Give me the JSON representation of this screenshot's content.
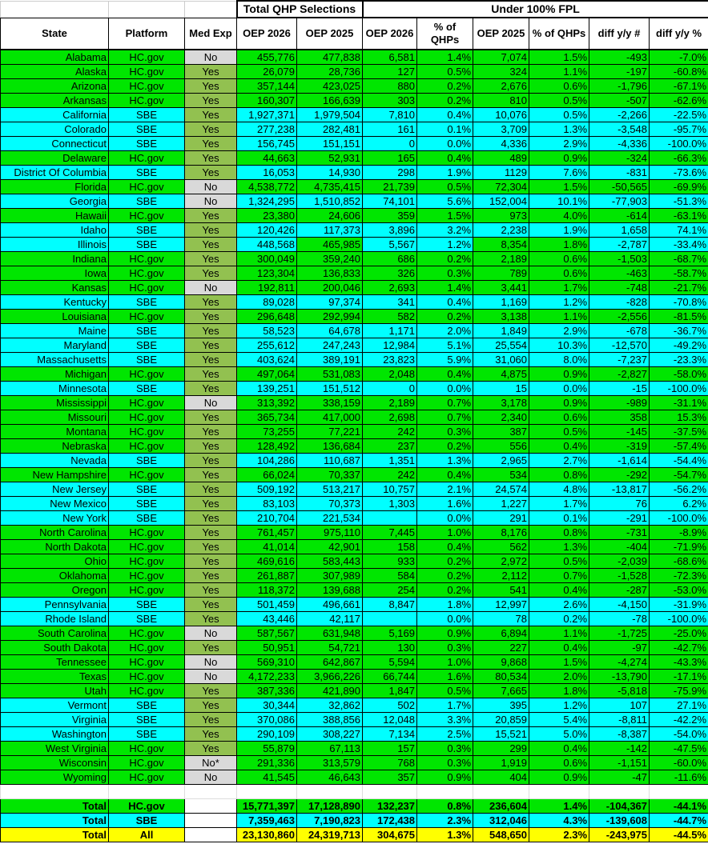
{
  "header": {
    "group_total": "Total QHP Selections",
    "group_fpl": "Under 100% FPL",
    "columns": [
      "State",
      "Platform",
      "Med Exp",
      "OEP 2026",
      "OEP 2025",
      "OEP 2026",
      "% of QHPs",
      "OEP 2025",
      "% of QHPs",
      "diff y/y #",
      "diff y/y %"
    ]
  },
  "colors": {
    "hcgov": "#00e600",
    "sbe": "#00ffff",
    "total_all": "#ffff00",
    "med_exp_yes": "#92c150",
    "med_exp_no": "#d9d9d9"
  },
  "rows": [
    [
      "Alabama",
      "HC.gov",
      "No",
      "455,776",
      "477,838",
      "6,581",
      "1.4%",
      "7,074",
      "1.5%",
      "-493",
      "-7.0%"
    ],
    [
      "Alaska",
      "HC.gov",
      "Yes",
      "26,079",
      "28,736",
      "127",
      "0.5%",
      "324",
      "1.1%",
      "-197",
      "-60.8%"
    ],
    [
      "Arizona",
      "HC.gov",
      "Yes",
      "357,144",
      "423,025",
      "880",
      "0.2%",
      "2,676",
      "0.6%",
      "-1,796",
      "-67.1%"
    ],
    [
      "Arkansas",
      "HC.gov",
      "Yes",
      "160,307",
      "166,639",
      "303",
      "0.2%",
      "810",
      "0.5%",
      "-507",
      "-62.6%"
    ],
    [
      "California",
      "SBE",
      "Yes",
      "1,927,371",
      "1,979,504",
      "7,810",
      "0.4%",
      "10,076",
      "0.5%",
      "-2,266",
      "-22.5%"
    ],
    [
      "Colorado",
      "SBE",
      "Yes",
      "277,238",
      "282,481",
      "161",
      "0.1%",
      "3,709",
      "1.3%",
      "-3,548",
      "-95.7%"
    ],
    [
      "Connecticut",
      "SBE",
      "Yes",
      "156,745",
      "151,151",
      "0",
      "0.0%",
      "4,336",
      "2.9%",
      "-4,336",
      "-100.0%"
    ],
    [
      "Delaware",
      "HC.gov",
      "Yes",
      "44,663",
      "52,931",
      "165",
      "0.4%",
      "489",
      "0.9%",
      "-324",
      "-66.3%"
    ],
    [
      "District Of Columbia",
      "SBE",
      "Yes",
      "16,053",
      "14,930",
      "298",
      "1.9%",
      "1129",
      "7.6%",
      "-831",
      "-73.6%"
    ],
    [
      "Florida",
      "HC.gov",
      "No",
      "4,538,772",
      "4,735,415",
      "21,739",
      "0.5%",
      "72,304",
      "1.5%",
      "-50,565",
      "-69.9%"
    ],
    [
      "Georgia",
      "SBE",
      "No",
      "1,324,295",
      "1,510,852",
      "74,101",
      "5.6%",
      "152,004",
      "10.1%",
      "-77,903",
      "-51.3%"
    ],
    [
      "Hawaii",
      "HC.gov",
      "Yes",
      "23,380",
      "24,606",
      "359",
      "1.5%",
      "973",
      "4.0%",
      "-614",
      "-63.1%"
    ],
    [
      "Idaho",
      "SBE",
      "Yes",
      "120,426",
      "117,373",
      "3,896",
      "3.2%",
      "2,238",
      "1.9%",
      "1,658",
      "74.1%"
    ],
    [
      "Illinois",
      "SBE",
      "Yes",
      "448,568",
      "465,985",
      "5,567",
      "1.2%",
      "8,354",
      "1.8%",
      "-2,787",
      "-33.4%"
    ],
    [
      "Indiana",
      "HC.gov",
      "Yes",
      "300,049",
      "359,240",
      "686",
      "0.2%",
      "2,189",
      "0.6%",
      "-1,503",
      "-68.7%"
    ],
    [
      "Iowa",
      "HC.gov",
      "Yes",
      "123,304",
      "136,833",
      "326",
      "0.3%",
      "789",
      "0.6%",
      "-463",
      "-58.7%"
    ],
    [
      "Kansas",
      "HC.gov",
      "No",
      "192,811",
      "200,046",
      "2,693",
      "1.4%",
      "3,441",
      "1.7%",
      "-748",
      "-21.7%"
    ],
    [
      "Kentucky",
      "SBE",
      "Yes",
      "89,028",
      "97,374",
      "341",
      "0.4%",
      "1,169",
      "1.2%",
      "-828",
      "-70.8%"
    ],
    [
      "Louisiana",
      "HC.gov",
      "Yes",
      "296,648",
      "292,994",
      "582",
      "0.2%",
      "3,138",
      "1.1%",
      "-2,556",
      "-81.5%"
    ],
    [
      "Maine",
      "SBE",
      "Yes",
      "58,523",
      "64,678",
      "1,171",
      "2.0%",
      "1,849",
      "2.9%",
      "-678",
      "-36.7%"
    ],
    [
      "Maryland",
      "SBE",
      "Yes",
      "255,612",
      "247,243",
      "12,984",
      "5.1%",
      "25,554",
      "10.3%",
      "-12,570",
      "-49.2%"
    ],
    [
      "Massachusetts",
      "SBE",
      "Yes",
      "403,624",
      "389,191",
      "23,823",
      "5.9%",
      "31,060",
      "8.0%",
      "-7,237",
      "-23.3%"
    ],
    [
      "Michigan",
      "HC.gov",
      "Yes",
      "497,064",
      "531,083",
      "2,048",
      "0.4%",
      "4,875",
      "0.9%",
      "-2,827",
      "-58.0%"
    ],
    [
      "Minnesota",
      "SBE",
      "Yes",
      "139,251",
      "151,512",
      "0",
      "0.0%",
      "15",
      "0.0%",
      "-15",
      "-100.0%"
    ],
    [
      "Mississippi",
      "HC.gov",
      "No",
      "313,392",
      "338,159",
      "2,189",
      "0.7%",
      "3,178",
      "0.9%",
      "-989",
      "-31.1%"
    ],
    [
      "Missouri",
      "HC.gov",
      "Yes",
      "365,734",
      "417,000",
      "2,698",
      "0.7%",
      "2,340",
      "0.6%",
      "358",
      "15.3%"
    ],
    [
      "Montana",
      "HC.gov",
      "Yes",
      "73,255",
      "77,221",
      "242",
      "0.3%",
      "387",
      "0.5%",
      "-145",
      "-37.5%"
    ],
    [
      "Nebraska",
      "HC.gov",
      "Yes",
      "128,492",
      "136,684",
      "237",
      "0.2%",
      "556",
      "0.4%",
      "-319",
      "-57.4%"
    ],
    [
      "Nevada",
      "SBE",
      "Yes",
      "104,286",
      "110,687",
      "1,351",
      "1.3%",
      "2,965",
      "2.7%",
      "-1,614",
      "-54.4%"
    ],
    [
      "New Hampshire",
      "HC.gov",
      "Yes",
      "66,024",
      "70,337",
      "242",
      "0.4%",
      "534",
      "0.8%",
      "-292",
      "-54.7%"
    ],
    [
      "New Jersey",
      "SBE",
      "Yes",
      "509,192",
      "513,217",
      "10,757",
      "2.1%",
      "24,574",
      "4.8%",
      "-13,817",
      "-56.2%"
    ],
    [
      "New Mexico",
      "SBE",
      "Yes",
      "83,103",
      "70,373",
      "1,303",
      "1.6%",
      "1,227",
      "1.7%",
      "76",
      "6.2%"
    ],
    [
      "New York",
      "SBE",
      "Yes",
      "210,704",
      "221,534",
      "",
      "0.0%",
      "291",
      "0.1%",
      "-291",
      "-100.0%"
    ],
    [
      "North Carolina",
      "HC.gov",
      "Yes",
      "761,457",
      "975,110",
      "7,445",
      "1.0%",
      "8,176",
      "0.8%",
      "-731",
      "-8.9%"
    ],
    [
      "North Dakota",
      "HC.gov",
      "Yes",
      "41,014",
      "42,901",
      "158",
      "0.4%",
      "562",
      "1.3%",
      "-404",
      "-71.9%"
    ],
    [
      "Ohio",
      "HC.gov",
      "Yes",
      "469,616",
      "583,443",
      "933",
      "0.2%",
      "2,972",
      "0.5%",
      "-2,039",
      "-68.6%"
    ],
    [
      "Oklahoma",
      "HC.gov",
      "Yes",
      "261,887",
      "307,989",
      "584",
      "0.2%",
      "2,112",
      "0.7%",
      "-1,528",
      "-72.3%"
    ],
    [
      "Oregon",
      "HC.gov",
      "Yes",
      "118,372",
      "139,688",
      "254",
      "0.2%",
      "541",
      "0.4%",
      "-287",
      "-53.0%"
    ],
    [
      "Pennsylvania",
      "SBE",
      "Yes",
      "501,459",
      "496,661",
      "8,847",
      "1.8%",
      "12,997",
      "2.6%",
      "-4,150",
      "-31.9%"
    ],
    [
      "Rhode Island",
      "SBE",
      "Yes",
      "43,446",
      "42,117",
      "",
      "0.0%",
      "78",
      "0.2%",
      "-78",
      "-100.0%"
    ],
    [
      "South Carolina",
      "HC.gov",
      "No",
      "587,567",
      "631,948",
      "5,169",
      "0.9%",
      "6,894",
      "1.1%",
      "-1,725",
      "-25.0%"
    ],
    [
      "South Dakota",
      "HC.gov",
      "Yes",
      "50,951",
      "54,721",
      "130",
      "0.3%",
      "227",
      "0.4%",
      "-97",
      "-42.7%"
    ],
    [
      "Tennessee",
      "HC.gov",
      "No",
      "569,310",
      "642,867",
      "5,594",
      "1.0%",
      "9,868",
      "1.5%",
      "-4,274",
      "-43.3%"
    ],
    [
      "Texas",
      "HC.gov",
      "No",
      "4,172,233",
      "3,966,226",
      "66,744",
      "1.6%",
      "80,534",
      "2.0%",
      "-13,790",
      "-17.1%"
    ],
    [
      "Utah",
      "HC.gov",
      "Yes",
      "387,336",
      "421,890",
      "1,847",
      "0.5%",
      "7,665",
      "1.8%",
      "-5,818",
      "-75.9%"
    ],
    [
      "Vermont",
      "SBE",
      "Yes",
      "30,344",
      "32,862",
      "502",
      "1.7%",
      "395",
      "1.2%",
      "107",
      "27.1%"
    ],
    [
      "Virginia",
      "SBE",
      "Yes",
      "370,086",
      "388,856",
      "12,048",
      "3.3%",
      "20,859",
      "5.4%",
      "-8,811",
      "-42.2%"
    ],
    [
      "Washington",
      "SBE",
      "Yes",
      "290,109",
      "308,227",
      "7,134",
      "2.5%",
      "15,521",
      "5.0%",
      "-8,387",
      "-54.0%"
    ],
    [
      "West Virginia",
      "HC.gov",
      "Yes",
      "55,879",
      "67,113",
      "157",
      "0.3%",
      "299",
      "0.4%",
      "-142",
      "-47.5%"
    ],
    [
      "Wisconsin",
      "HC.gov",
      "No*",
      "291,336",
      "313,579",
      "768",
      "0.3%",
      "1,919",
      "0.6%",
      "-1,151",
      "-60.0%"
    ],
    [
      "Wyoming",
      "HC.gov",
      "No",
      "41,545",
      "46,643",
      "357",
      "0.9%",
      "404",
      "0.9%",
      "-47",
      "-11.6%"
    ]
  ],
  "totals": [
    [
      "Total",
      "HC.gov",
      "",
      "15,771,397",
      "17,128,890",
      "132,237",
      "0.8%",
      "236,604",
      "1.4%",
      "-104,367",
      "-44.1%"
    ],
    [
      "Total",
      "SBE",
      "",
      "7,359,463",
      "7,190,823",
      "172,438",
      "2.3%",
      "312,046",
      "4.3%",
      "-139,608",
      "-44.7%"
    ],
    [
      "Total",
      "All",
      "",
      "23,130,860",
      "24,319,713",
      "304,675",
      "1.3%",
      "548,650",
      "2.3%",
      "-243,975",
      "-44.5%"
    ]
  ]
}
